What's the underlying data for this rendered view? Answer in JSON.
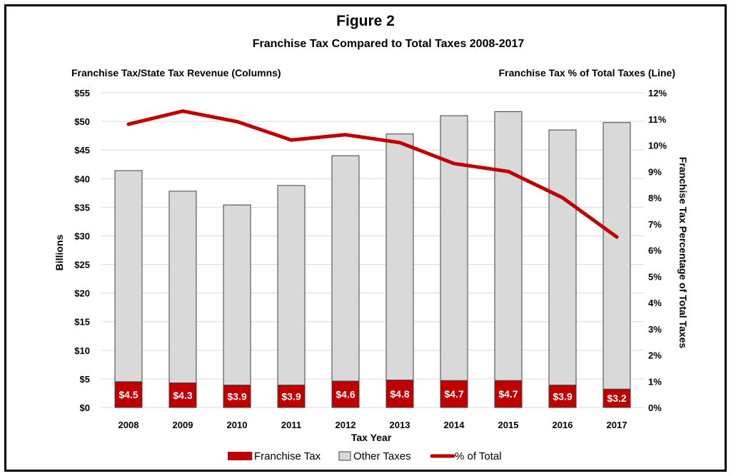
{
  "figure_label": "Figure 2",
  "chart_data": {
    "type": "bar",
    "title": "Franchise Tax Compared to Total Taxes 2008-2017",
    "left_subtitle": "Franchise Tax/State Tax Revenue (Columns)",
    "right_subtitle": "Franchise Tax % of Total Taxes (Line)",
    "xlabel": "Tax Year",
    "ylabel": "Billions",
    "y2label": "Franchise Tax Percentage of Total Taxes",
    "ylim": [
      0,
      55
    ],
    "y2lim": [
      0,
      12
    ],
    "yticks": [
      "$0",
      "$5",
      "$10",
      "$15",
      "$20",
      "$25",
      "$30",
      "$35",
      "$40",
      "$45",
      "$50",
      "$55"
    ],
    "y2ticks": [
      "0%",
      "1%",
      "2%",
      "3%",
      "4%",
      "5%",
      "6%",
      "7%",
      "8%",
      "9%",
      "10%",
      "11%",
      "12%"
    ],
    "categories": [
      "2008",
      "2009",
      "2010",
      "2011",
      "2012",
      "2013",
      "2014",
      "2015",
      "2016",
      "2017"
    ],
    "stacked": true,
    "series": [
      {
        "name": "Franchise Tax",
        "color": "#c00000",
        "values": [
          4.5,
          4.3,
          3.9,
          3.9,
          4.6,
          4.8,
          4.7,
          4.7,
          3.9,
          3.2
        ],
        "labels": [
          "$4.5",
          "$4.3",
          "$3.9",
          "$3.9",
          "$4.6",
          "$4.8",
          "$4.7",
          "$4.7",
          "$3.9",
          "$3.2"
        ]
      },
      {
        "name": "Other Taxes",
        "color": "#d9d9d9",
        "values": [
          36.9,
          33.5,
          31.5,
          34.9,
          39.4,
          43.0,
          46.3,
          47.0,
          44.6,
          46.6
        ]
      },
      {
        "name": "% of Total",
        "type": "line",
        "axis": "right",
        "color": "#c00000",
        "values": [
          10.8,
          11.3,
          10.9,
          10.2,
          10.4,
          10.1,
          9.3,
          9.0,
          8.0,
          6.5
        ]
      }
    ],
    "grid": true,
    "legend": "bottom-center"
  }
}
